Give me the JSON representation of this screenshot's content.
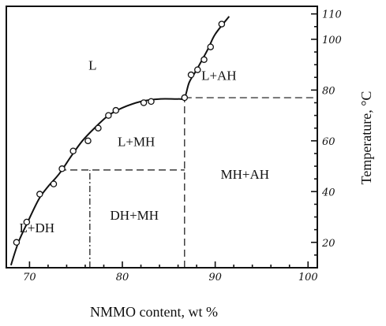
{
  "chart_data": {
    "type": "phase-diagram",
    "xlabel": "NMMO content, wt %",
    "ylabel": "Temperature, °C",
    "xlim": [
      67.5,
      101
    ],
    "ylim": [
      10,
      113
    ],
    "x_ticks": [
      70,
      80,
      90,
      100
    ],
    "y_ticks": [
      20,
      40,
      60,
      80,
      100,
      110
    ],
    "x_tick_labels": [
      "70",
      "80",
      "90",
      "100"
    ],
    "y_tick_labels": [
      "20",
      "40",
      "60",
      "80",
      "100",
      "110"
    ],
    "liquidus_curve": [
      [
        68.0,
        11
      ],
      [
        68.8,
        20
      ],
      [
        69.8,
        28
      ],
      [
        71.0,
        37
      ],
      [
        72.0,
        42
      ],
      [
        73.2,
        47
      ],
      [
        74.5,
        54
      ],
      [
        75.7,
        60
      ],
      [
        77.0,
        65
      ],
      [
        78.5,
        70
      ],
      [
        80.0,
        73
      ],
      [
        82.0,
        75.5
      ],
      [
        84.0,
        76.5
      ],
      [
        86.0,
        76.5
      ],
      [
        86.7,
        77
      ],
      [
        87.2,
        83
      ],
      [
        88.0,
        88
      ],
      [
        89.2,
        96
      ],
      [
        90.0,
        102
      ],
      [
        91.5,
        109
      ]
    ],
    "data_points": [
      [
        68.6,
        20
      ],
      [
        69.7,
        28
      ],
      [
        71.1,
        39
      ],
      [
        72.6,
        43
      ],
      [
        73.5,
        49
      ],
      [
        74.7,
        56
      ],
      [
        76.3,
        60
      ],
      [
        77.4,
        65
      ],
      [
        78.5,
        70
      ],
      [
        79.3,
        72
      ],
      [
        82.3,
        75
      ],
      [
        83.1,
        75.5
      ],
      [
        86.7,
        77
      ],
      [
        87.4,
        86
      ],
      [
        88.1,
        88
      ],
      [
        88.8,
        92
      ],
      [
        89.5,
        97
      ],
      [
        90.7,
        106
      ]
    ],
    "dashed_lines": [
      {
        "style": "dashed",
        "x": [
          86.7,
          101
        ],
        "y": [
          77,
          77
        ]
      },
      {
        "style": "dashed",
        "x": [
          73.2,
          86.7
        ],
        "y": [
          48.5,
          48.5
        ]
      },
      {
        "style": "dashed",
        "x": [
          86.7,
          86.7
        ],
        "y": [
          10,
          77
        ]
      },
      {
        "style": "dashdot",
        "x": [
          76.5,
          76.5
        ],
        "y": [
          10,
          48.5
        ]
      }
    ],
    "region_labels": [
      {
        "text": "L",
        "x": 76.8,
        "y": 88
      },
      {
        "text": "L+AH",
        "x": 90.4,
        "y": 84
      },
      {
        "text": "L+MH",
        "x": 81.5,
        "y": 58
      },
      {
        "text": "MH+AH",
        "x": 93.2,
        "y": 45
      },
      {
        "text": "L+DH",
        "x": 70.8,
        "y": 24
      },
      {
        "text": "DH+MH",
        "x": 81.3,
        "y": 29
      }
    ]
  }
}
